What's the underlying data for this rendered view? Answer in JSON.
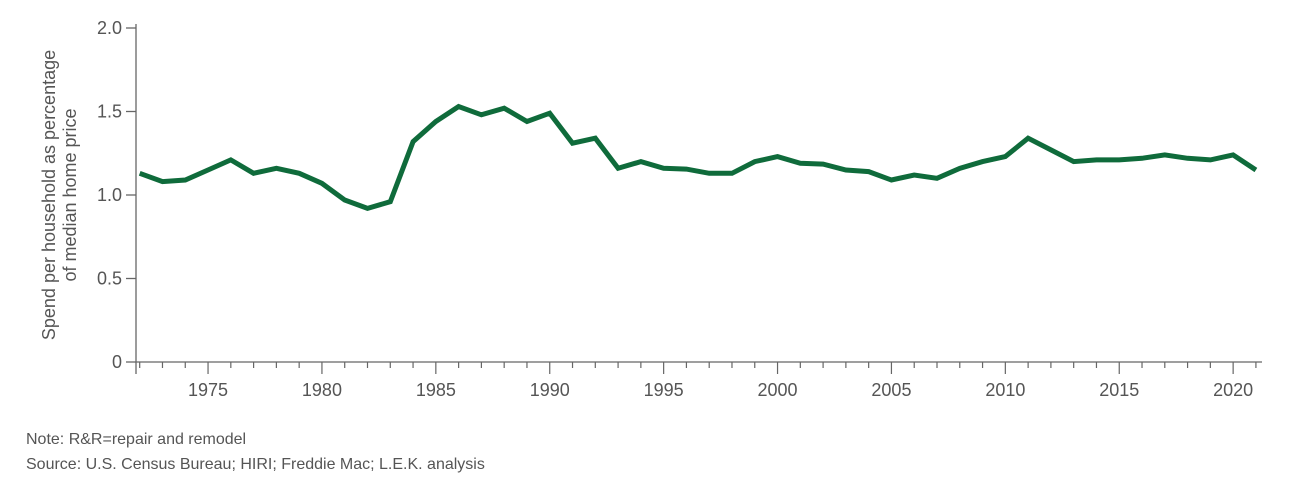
{
  "chart_data": {
    "type": "line",
    "title": "",
    "xlabel": "",
    "ylabel": [
      "Spend per household as percentage",
      "of median home price"
    ],
    "ylim": [
      0,
      2.0
    ],
    "xlim": [
      1972,
      2021
    ],
    "yticks": [
      "0",
      "0.5",
      "1.0",
      "1.5",
      "2.0"
    ],
    "ytick_values": [
      0,
      0.5,
      1.0,
      1.5,
      2.0
    ],
    "xticks": [
      "1975",
      "1980",
      "1985",
      "1990",
      "1995",
      "2000",
      "2005",
      "2010",
      "2015",
      "2020"
    ],
    "grid": false,
    "line_color": "#0f6b3b",
    "x": [
      1972,
      1973,
      1974,
      1975,
      1976,
      1977,
      1978,
      1979,
      1980,
      1981,
      1982,
      1983,
      1984,
      1985,
      1986,
      1987,
      1988,
      1989,
      1990,
      1991,
      1992,
      1993,
      1994,
      1995,
      1996,
      1997,
      1998,
      1999,
      2000,
      2001,
      2002,
      2003,
      2004,
      2005,
      2006,
      2007,
      2008,
      2009,
      2010,
      2011,
      2012,
      2013,
      2014,
      2015,
      2016,
      2017,
      2018,
      2019,
      2020,
      2021
    ],
    "series": [
      {
        "values": [
          1.13,
          1.08,
          1.09,
          1.15,
          1.21,
          1.13,
          1.16,
          1.13,
          1.07,
          0.97,
          0.92,
          0.96,
          1.32,
          1.44,
          1.53,
          1.48,
          1.52,
          1.44,
          1.49,
          1.31,
          1.34,
          1.16,
          1.2,
          1.16,
          1.155,
          1.13,
          1.13,
          1.2,
          1.23,
          1.19,
          1.185,
          1.15,
          1.14,
          1.09,
          1.12,
          1.1,
          1.16,
          1.2,
          1.23,
          1.34,
          1.27,
          1.2,
          1.21,
          1.21,
          1.22,
          1.24,
          1.22,
          1.21,
          1.24,
          1.15
        ]
      }
    ]
  },
  "notes": {
    "note": "Note: R&R=repair and remodel",
    "source": "Source: U.S. Census Bureau; HIRI; Freddie Mac; L.E.K. analysis"
  }
}
